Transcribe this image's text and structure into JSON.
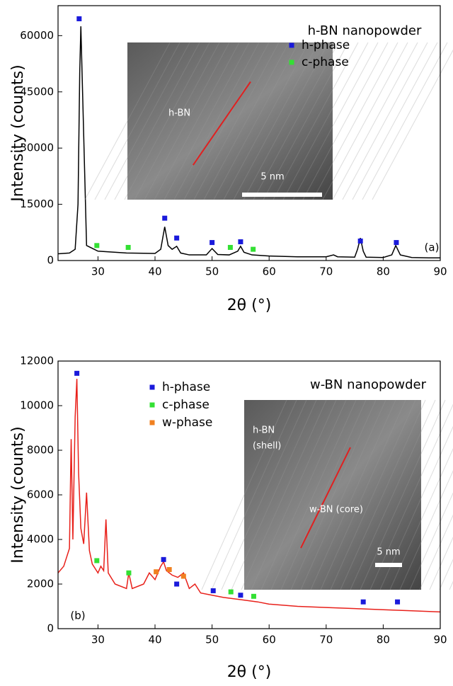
{
  "chart_data": [
    {
      "type": "line",
      "annotation": "h-BN nanopowder",
      "panel_label": "(a)",
      "xlabel": "2θ (°)",
      "ylabel": "Intensity (counts)",
      "xlim": [
        23,
        90
      ],
      "ylim": [
        0,
        68000
      ],
      "xticks": [
        30,
        40,
        50,
        60,
        70,
        80,
        90
      ],
      "yticks": [
        0,
        15000,
        30000,
        45000,
        60000
      ],
      "color": "#000000",
      "x": [
        23,
        25,
        26,
        26.5,
        26.8,
        27,
        27.3,
        28,
        30,
        35,
        40,
        41,
        41.7,
        42.3,
        43,
        43.8,
        44.5,
        46,
        49,
        50,
        51,
        53,
        54.5,
        55,
        55.6,
        57,
        60,
        65,
        70,
        71.3,
        72,
        75,
        75.5,
        76,
        76.5,
        77,
        80,
        81.5,
        82.2,
        83,
        85,
        88,
        90
      ],
      "values": [
        1800,
        2000,
        3000,
        15000,
        50000,
        62500,
        45000,
        4000,
        2500,
        2000,
        1900,
        3000,
        9000,
        4000,
        3000,
        3800,
        2000,
        1500,
        1500,
        3200,
        1600,
        1500,
        2500,
        3800,
        2200,
        1500,
        1200,
        1000,
        1000,
        1500,
        1000,
        900,
        3000,
        6000,
        2500,
        900,
        800,
        1500,
        4000,
        1500,
        800,
        700,
        700
      ],
      "markers": [
        {
          "name": "h-phase",
          "color": "#1a1adb",
          "x": [
            26.7,
            41.7,
            43.8,
            50,
            55,
            76,
            82.3
          ],
          "values": [
            64500,
            11300,
            6000,
            4800,
            5000,
            5200,
            4800
          ]
        },
        {
          "name": "c-phase",
          "color": "#33e033",
          "x": [
            29.8,
            35.3,
            53.2,
            57.2
          ],
          "values": [
            4000,
            3500,
            3500,
            3000
          ]
        }
      ],
      "inset": {
        "labels": [
          "h-BN"
        ],
        "scale_bar": "5 nm"
      }
    },
    {
      "type": "line",
      "annotation": "w-BN nanopowder",
      "panel_label": "(b)",
      "xlabel": "2θ (°)",
      "ylabel": "Intensity (counts)",
      "xlim": [
        23,
        90
      ],
      "ylim": [
        0,
        12000
      ],
      "xticks": [
        30,
        40,
        50,
        60,
        70,
        80,
        90
      ],
      "yticks": [
        0,
        2000,
        4000,
        6000,
        8000,
        10000,
        12000
      ],
      "color": "#e8201a",
      "x": [
        23,
        24,
        25,
        25.3,
        25.6,
        26,
        26.3,
        26.6,
        27,
        27.5,
        28,
        28.5,
        29,
        30,
        30.5,
        31,
        31.4,
        31.8,
        33,
        35,
        35.4,
        36,
        38,
        39,
        40,
        41,
        41.5,
        42,
        43,
        44,
        45,
        46,
        47,
        48,
        50,
        52,
        55,
        58,
        60,
        65,
        70,
        75,
        80,
        85,
        90
      ],
      "values": [
        2500,
        2800,
        3600,
        8500,
        4000,
        9500,
        11200,
        7000,
        4500,
        3800,
        6100,
        3500,
        2900,
        2500,
        2800,
        2600,
        4900,
        2500,
        2000,
        1800,
        2500,
        1800,
        2000,
        2500,
        2200,
        2800,
        3000,
        2600,
        2400,
        2300,
        2500,
        1800,
        2000,
        1600,
        1500,
        1400,
        1300,
        1200,
        1100,
        1000,
        950,
        900,
        850,
        800,
        750
      ],
      "markers": [
        {
          "name": "h-phase",
          "color": "#1a1adb",
          "x": [
            26.3,
            41.5,
            43.8,
            50.2,
            55,
            76.5,
            82.5
          ],
          "values": [
            11450,
            3100,
            2000,
            1700,
            1500,
            1200,
            1200
          ]
        },
        {
          "name": "c-phase",
          "color": "#33e033",
          "x": [
            29.8,
            35.4,
            53.3,
            57.3
          ],
          "values": [
            3050,
            2500,
            1650,
            1450
          ]
        },
        {
          "name": "w-phase",
          "color": "#f08020",
          "x": [
            40.2,
            42.5,
            45
          ],
          "values": [
            2550,
            2650,
            2350
          ]
        }
      ],
      "inset": {
        "labels": [
          "h-BN",
          "(shell)",
          "w-BN (core)"
        ],
        "scale_bar": "5 nm"
      }
    }
  ]
}
